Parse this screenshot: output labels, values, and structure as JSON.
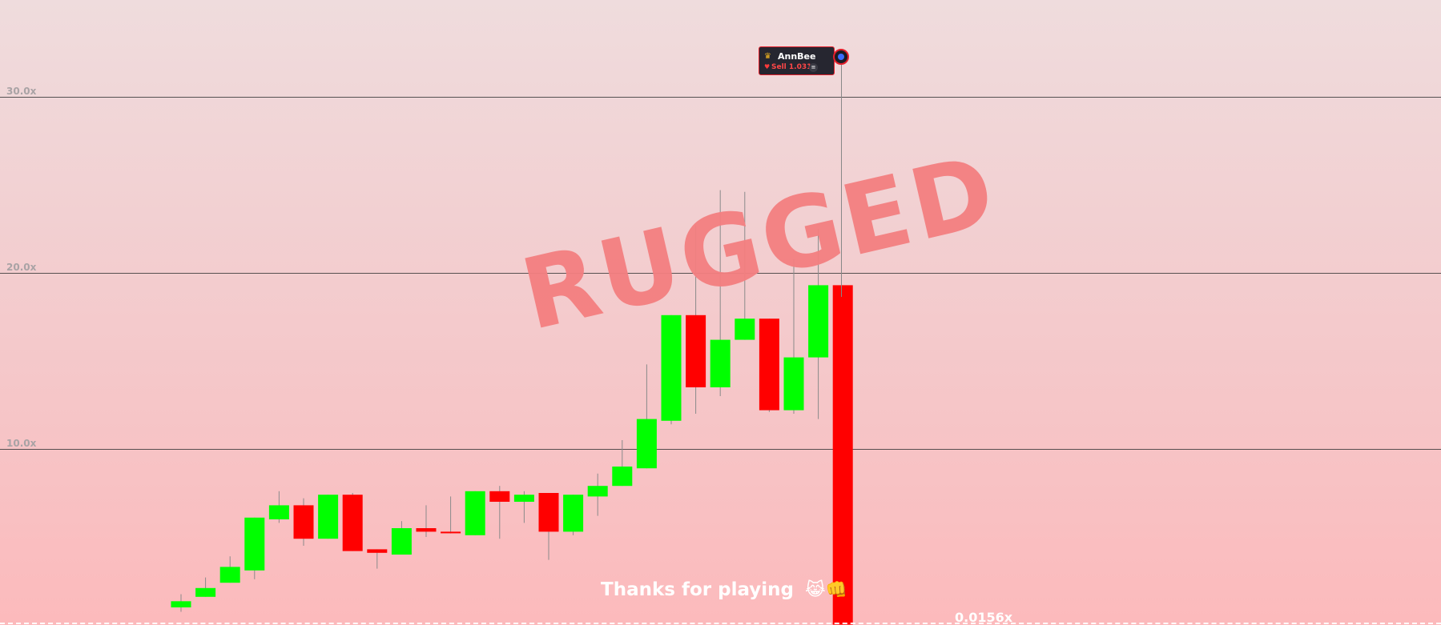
{
  "chart_data": {
    "type": "candlestick",
    "ylabel": "",
    "xlabel": "",
    "y_ticks": [
      {
        "value": 30,
        "label": "30.0x"
      },
      {
        "value": 20,
        "label": "20.0x"
      },
      {
        "value": 10,
        "label": "10.0x"
      }
    ],
    "candles": [
      {
        "o": 1.0,
        "c": 1.35,
        "h": 1.75,
        "l": 0.75
      },
      {
        "o": 1.6,
        "c": 2.1,
        "h": 2.7,
        "l": 1.6
      },
      {
        "o": 2.4,
        "c": 3.3,
        "h": 3.9,
        "l": 2.4
      },
      {
        "o": 3.1,
        "c": 6.1,
        "h": 6.1,
        "l": 2.6
      },
      {
        "o": 6.0,
        "c": 6.8,
        "h": 7.6,
        "l": 5.8
      },
      {
        "o": 6.8,
        "c": 4.9,
        "h": 7.2,
        "l": 4.5
      },
      {
        "o": 4.9,
        "c": 7.4,
        "h": 7.4,
        "l": 4.9
      },
      {
        "o": 7.4,
        "c": 4.2,
        "h": 7.5,
        "l": 4.2
      },
      {
        "o": 4.3,
        "c": 4.1,
        "h": 4.3,
        "l": 3.2
      },
      {
        "o": 4.0,
        "c": 5.5,
        "h": 5.9,
        "l": 4.0
      },
      {
        "o": 5.5,
        "c": 5.3,
        "h": 6.8,
        "l": 5.0
      },
      {
        "o": 5.3,
        "c": 5.25,
        "h": 7.3,
        "l": 5.2
      },
      {
        "o": 5.1,
        "c": 7.6,
        "h": 7.6,
        "l": 5.1
      },
      {
        "o": 7.6,
        "c": 7.0,
        "h": 7.9,
        "l": 4.9
      },
      {
        "o": 7.0,
        "c": 7.4,
        "h": 7.6,
        "l": 5.8
      },
      {
        "o": 7.5,
        "c": 5.3,
        "h": 7.5,
        "l": 3.7
      },
      {
        "o": 5.3,
        "c": 7.4,
        "h": 7.4,
        "l": 5.1
      },
      {
        "o": 7.3,
        "c": 7.9,
        "h": 8.6,
        "l": 6.2
      },
      {
        "o": 7.9,
        "c": 9.0,
        "h": 10.5,
        "l": 7.9
      },
      {
        "o": 8.9,
        "c": 11.7,
        "h": 14.8,
        "l": 8.9
      },
      {
        "o": 11.6,
        "c": 17.6,
        "h": 17.6,
        "l": 11.4
      },
      {
        "o": 17.6,
        "c": 13.5,
        "h": 22.7,
        "l": 12.0
      },
      {
        "o": 13.5,
        "c": 16.2,
        "h": 24.7,
        "l": 13.0
      },
      {
        "o": 16.2,
        "c": 17.4,
        "h": 24.6,
        "l": 16.2
      },
      {
        "o": 17.4,
        "c": 12.2,
        "h": 17.4,
        "l": 12.1
      },
      {
        "o": 12.2,
        "c": 15.2,
        "h": 20.8,
        "l": 12.0
      },
      {
        "o": 15.2,
        "c": 19.3,
        "h": 22.5,
        "l": 11.7
      },
      {
        "o": 19.3,
        "c": 0.0156,
        "h": 19.3,
        "l": 0.0156
      }
    ],
    "y_range": [
      0,
      35
    ],
    "grid": true,
    "colors": {
      "up": "#00ff00",
      "down": "#ff0000",
      "wick": "#8a8a8a"
    }
  },
  "overlay": {
    "status_text": "RUGGED",
    "thanks_text": "Thanks for playing",
    "thanks_emoji": "😹👊",
    "final_multiplier": "0.0156x"
  },
  "trade_marker": {
    "username": "AnnBee",
    "action": "Sell 1.031",
    "crown_icon": "crown-icon",
    "heart_icon": "heart-icon",
    "coin_icon": "coin-icon"
  },
  "colors": {
    "accent_red": "#e31f2b",
    "rugged_text": "#f47f80"
  }
}
